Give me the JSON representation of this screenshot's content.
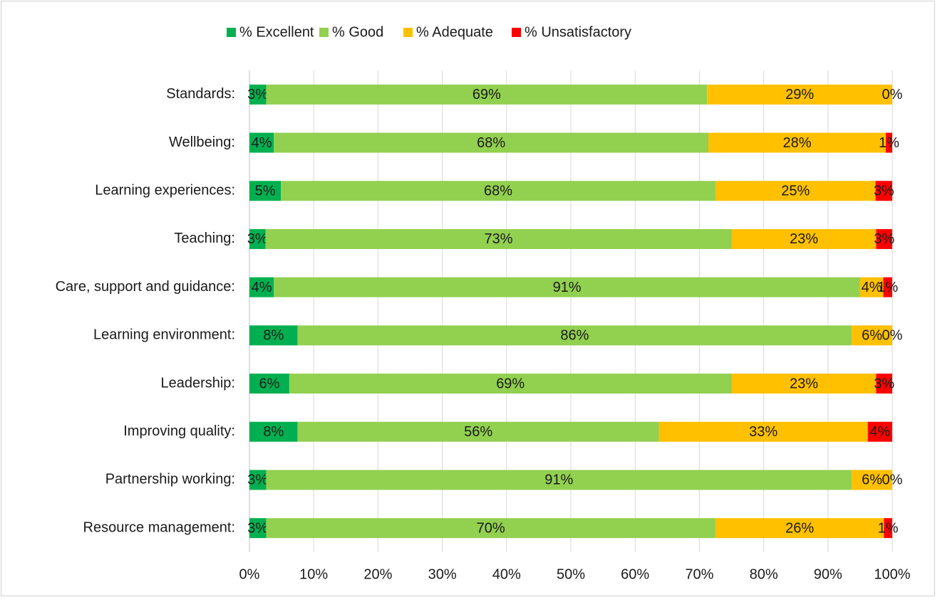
{
  "chart_data": {
    "type": "stacked-bar-horizontal",
    "categories": [
      "Standards:",
      "Wellbeing:",
      "Learning experiences:",
      "Teaching:",
      "Care, support and guidance:",
      "Learning environment:",
      "Leadership:",
      "Improving quality:",
      "Partnership working:",
      "Resource management:"
    ],
    "series": [
      {
        "name": "% Excellent",
        "color": "#00b050",
        "values": [
          2.6,
          3.8,
          4.9,
          2.5,
          3.8,
          7.5,
          6.2,
          7.5,
          2.6,
          2.6
        ],
        "value_labels": [
          "3%",
          "4%",
          "5%",
          "3%",
          "4%",
          "8%",
          "6%",
          "8%",
          "3%",
          "3%"
        ]
      },
      {
        "name": "% Good",
        "color": "#92d050",
        "values": [
          68.6,
          67.6,
          67.6,
          72.5,
          91.2,
          86.2,
          68.8,
          56.2,
          91.1,
          69.9
        ],
        "value_labels": [
          "69%",
          "68%",
          "68%",
          "73%",
          "91%",
          "86%",
          "69%",
          "56%",
          "91%",
          "70%"
        ]
      },
      {
        "name": "% Adequate",
        "color": "#ffc000",
        "values": [
          28.8,
          27.6,
          24.9,
          22.5,
          3.6,
          6.3,
          22.5,
          32.5,
          6.3,
          26.2
        ],
        "value_labels": [
          "29%",
          "28%",
          "25%",
          "23%",
          "4%",
          "6%",
          "23%",
          "33%",
          "6%",
          "26%"
        ]
      },
      {
        "name": "% Unsatisfactory",
        "color": "#ff0000",
        "values": [
          0,
          1.0,
          2.6,
          2.5,
          1.4,
          0,
          2.5,
          3.8,
          0,
          1.3
        ],
        "value_labels": [
          "0%",
          "1%",
          "3%",
          "3%",
          "1%",
          "0%",
          "3%",
          "4%",
          "0%",
          "1%"
        ]
      }
    ],
    "xlim": [
      0,
      100
    ],
    "xticks": [
      {
        "value": 0,
        "label": "0%"
      },
      {
        "value": 10,
        "label": "10%"
      },
      {
        "value": 20,
        "label": "20%"
      },
      {
        "value": 30,
        "label": "30%"
      },
      {
        "value": 40,
        "label": "40%"
      },
      {
        "value": 50,
        "label": "50%"
      },
      {
        "value": 60,
        "label": "60%"
      },
      {
        "value": 70,
        "label": "70%"
      },
      {
        "value": 80,
        "label": "80%"
      },
      {
        "value": 90,
        "label": "90%"
      },
      {
        "value": 100,
        "label": "100%"
      }
    ],
    "grid": true,
    "legend": "top"
  }
}
